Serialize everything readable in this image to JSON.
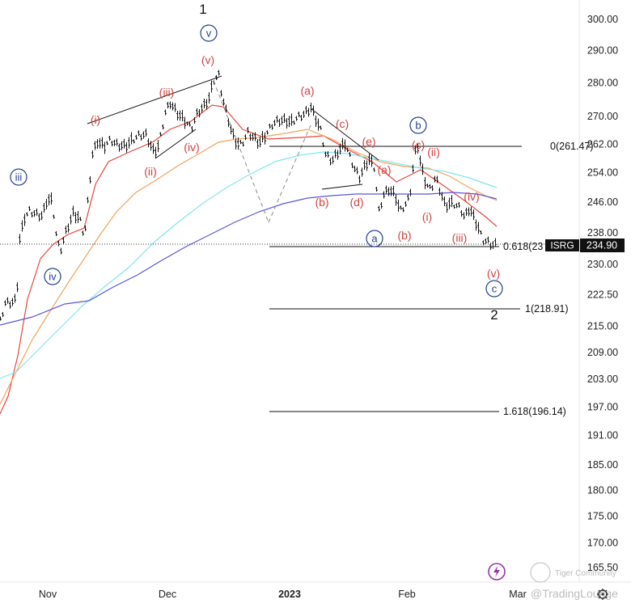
{
  "chart_data": {
    "type": "ohlc",
    "symbol": "ISRG",
    "last_price": "234.90",
    "y_ticks": [
      "300.00",
      "290.00",
      "280.00",
      "270.00",
      "262.00",
      "254.00",
      "246.00",
      "238.00",
      "230.00",
      "222.50",
      "215.00",
      "209.00",
      "203.00",
      "197.00",
      "191.00",
      "185.00",
      "180.00",
      "175.00",
      "170.00",
      "165.50"
    ],
    "x_ticks": [
      "Nov",
      "Dec",
      "2023",
      "Feb",
      "Mar"
    ],
    "ylim": [
      165.5,
      300
    ],
    "y_scale": "log",
    "fib_levels": [
      {
        "label": "0(261.47)",
        "value": 261.47
      },
      {
        "label": "0.618(23",
        "value": 232.7
      },
      {
        "label": "1(218.91)",
        "value": 218.91
      },
      {
        "label": "1.618(196.14)",
        "value": 196.14
      }
    ],
    "moving_averages": [
      {
        "color": "#e8453c",
        "kind": "short"
      },
      {
        "color": "#f2a25c",
        "kind": "medium"
      },
      {
        "color": "#7fe6ee",
        "kind": "long"
      },
      {
        "color": "#5a55d6",
        "kind": "longest"
      }
    ],
    "wave_labels": [
      {
        "text": "1",
        "style": "black"
      },
      {
        "text": "v",
        "style": "blue-circle"
      },
      {
        "text": "(v)",
        "style": "red"
      },
      {
        "text": "(iii)",
        "style": "red"
      },
      {
        "text": "(i)",
        "style": "red"
      },
      {
        "text": "(ii)",
        "style": "red"
      },
      {
        "text": "(iv)",
        "style": "red"
      },
      {
        "text": "iii",
        "style": "blue-circle"
      },
      {
        "text": "iv",
        "style": "blue-circle"
      },
      {
        "text": "(a)",
        "style": "red"
      },
      {
        "text": "(c)",
        "style": "red"
      },
      {
        "text": "(e)",
        "style": "red"
      },
      {
        "text": "(b)",
        "style": "red"
      },
      {
        "text": "(d)",
        "style": "red"
      },
      {
        "text": "(a)",
        "style": "red"
      },
      {
        "text": "b",
        "style": "blue-circle"
      },
      {
        "text": "(c)",
        "style": "red"
      },
      {
        "text": "(ii)",
        "style": "red"
      },
      {
        "text": "(i)",
        "style": "red"
      },
      {
        "text": "(b)",
        "style": "red"
      },
      {
        "text": "a",
        "style": "blue-circle"
      },
      {
        "text": "(iv)",
        "style": "red"
      },
      {
        "text": "(iii)",
        "style": "red"
      },
      {
        "text": "(v)",
        "style": "red"
      },
      {
        "text": "c",
        "style": "blue-circle"
      },
      {
        "text": "2",
        "style": "black"
      }
    ],
    "colors": {
      "price_tag_bg": "#111111",
      "price_tag_text": "#ffffff",
      "wave_red": "#d2413c",
      "wave_blue": "#1f3f8f"
    }
  },
  "watermark": {
    "brand": "Tiger Community",
    "handle": "@TradingLounge"
  }
}
